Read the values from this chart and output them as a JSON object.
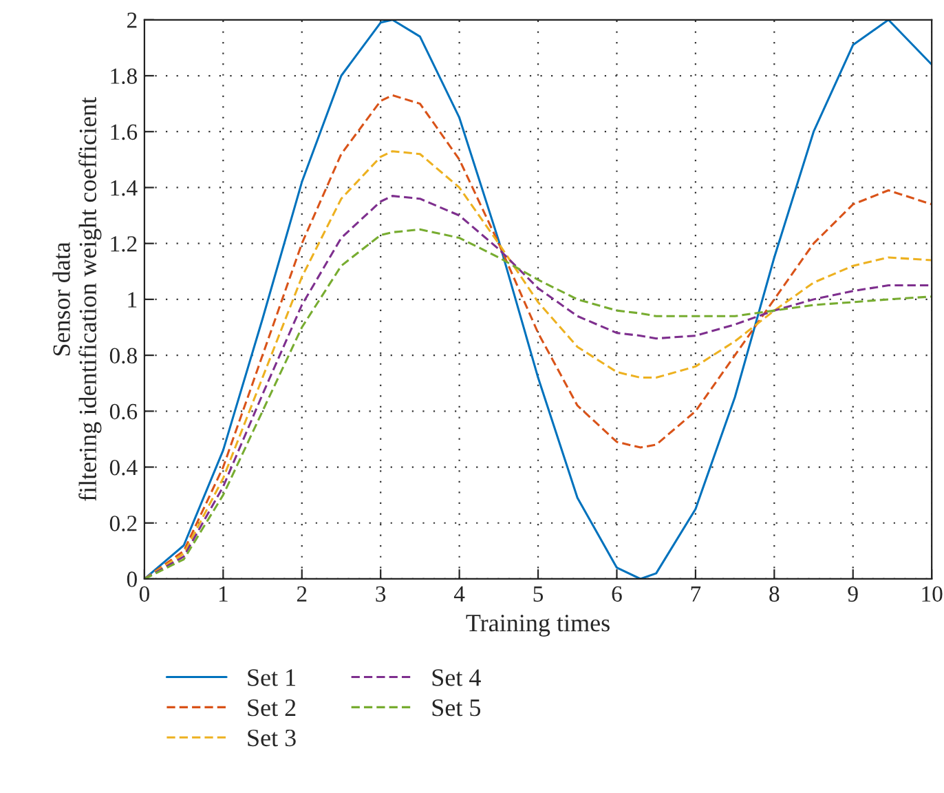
{
  "chart_data": {
    "type": "line",
    "xlabel": "Training times",
    "ylabel": "Sensor data\nfiltering identification weight coefficient",
    "x": [
      0,
      0.5,
      1,
      1.5,
      2,
      2.5,
      3,
      3.15,
      3.5,
      4,
      4.5,
      5,
      5.5,
      6,
      6.3,
      6.5,
      7,
      7.5,
      8,
      8.5,
      9,
      9.45,
      10
    ],
    "series": [
      {
        "name": "Set 1",
        "color": "#0072bd",
        "line_style": "solid",
        "values": [
          0,
          0.12,
          0.46,
          0.93,
          1.42,
          1.8,
          1.99,
          2.0,
          1.94,
          1.65,
          1.21,
          0.72,
          0.29,
          0.04,
          0.0,
          0.02,
          0.25,
          0.65,
          1.15,
          1.6,
          1.91,
          2.0,
          1.84
        ]
      },
      {
        "name": "Set 2",
        "color": "#d95319",
        "line_style": "dashed",
        "values": [
          0,
          0.1,
          0.4,
          0.8,
          1.2,
          1.52,
          1.71,
          1.73,
          1.7,
          1.5,
          1.2,
          0.88,
          0.62,
          0.49,
          0.47,
          0.48,
          0.6,
          0.8,
          1.0,
          1.2,
          1.34,
          1.39,
          1.34
        ]
      },
      {
        "name": "Set 3",
        "color": "#edb120",
        "line_style": "dashed",
        "values": [
          0,
          0.09,
          0.36,
          0.72,
          1.08,
          1.36,
          1.51,
          1.53,
          1.52,
          1.4,
          1.2,
          0.99,
          0.83,
          0.74,
          0.72,
          0.72,
          0.76,
          0.85,
          0.96,
          1.06,
          1.12,
          1.15,
          1.14
        ]
      },
      {
        "name": "Set 4",
        "color": "#7e2f8e",
        "line_style": "dashed",
        "values": [
          0,
          0.08,
          0.33,
          0.66,
          0.98,
          1.22,
          1.35,
          1.37,
          1.36,
          1.3,
          1.18,
          1.04,
          0.94,
          0.88,
          0.87,
          0.86,
          0.87,
          0.91,
          0.96,
          1.0,
          1.03,
          1.05,
          1.05
        ]
      },
      {
        "name": "Set 5",
        "color": "#77ac30",
        "line_style": "dashed",
        "values": [
          0,
          0.07,
          0.3,
          0.6,
          0.9,
          1.12,
          1.23,
          1.24,
          1.25,
          1.22,
          1.15,
          1.07,
          1.0,
          0.96,
          0.95,
          0.94,
          0.94,
          0.94,
          0.96,
          0.98,
          0.99,
          1.0,
          1.01
        ]
      }
    ],
    "xlim": [
      0,
      10
    ],
    "xticks": [
      0,
      1,
      2,
      3,
      4,
      5,
      6,
      7,
      8,
      9,
      10
    ],
    "ylim": [
      0,
      2
    ],
    "yticks": [
      0,
      0.2,
      0.4,
      0.6,
      0.8,
      1,
      1.2,
      1.4,
      1.6,
      1.8,
      2
    ],
    "grid": true,
    "legend": "bottom",
    "marker": "none"
  }
}
